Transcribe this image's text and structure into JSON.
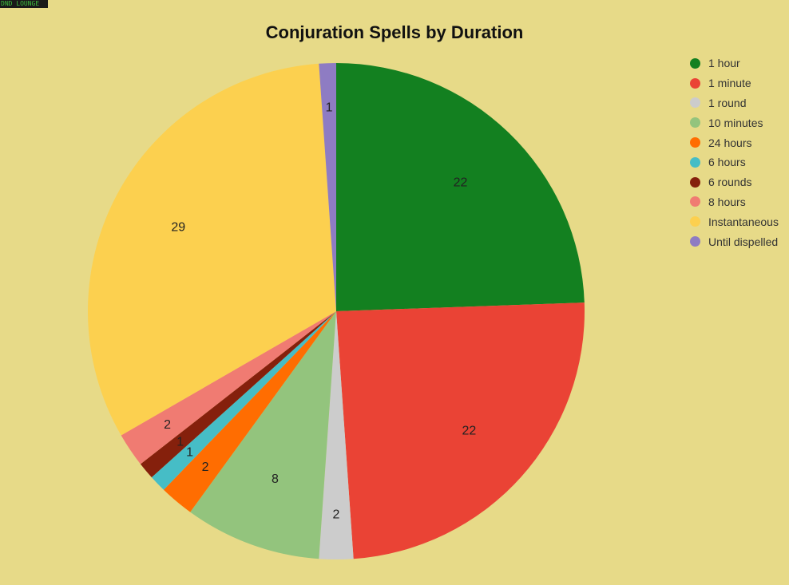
{
  "site_badge": "DND LOUNGE",
  "chart_data": {
    "type": "pie",
    "title": "Conjuration Spells by Duration",
    "legend_position": "right",
    "slices": [
      {
        "label": "1 hour",
        "value": 22,
        "color": "#138020"
      },
      {
        "label": "1 minute",
        "value": 22,
        "color": "#ea4335"
      },
      {
        "label": "1 round",
        "value": 2,
        "color": "#cccccc"
      },
      {
        "label": "10 minutes",
        "value": 8,
        "color": "#93c47d"
      },
      {
        "label": "24 hours",
        "value": 2,
        "color": "#ff6d01"
      },
      {
        "label": "6 hours",
        "value": 1,
        "color": "#46bdc6"
      },
      {
        "label": "6 rounds",
        "value": 1,
        "color": "#85200c"
      },
      {
        "label": "8 hours",
        "value": 2,
        "color": "#f07b72"
      },
      {
        "label": "Instantaneous",
        "value": 29,
        "color": "#fcd04f"
      },
      {
        "label": "Until dispelled",
        "value": 1,
        "color": "#8e7cc3"
      }
    ]
  }
}
